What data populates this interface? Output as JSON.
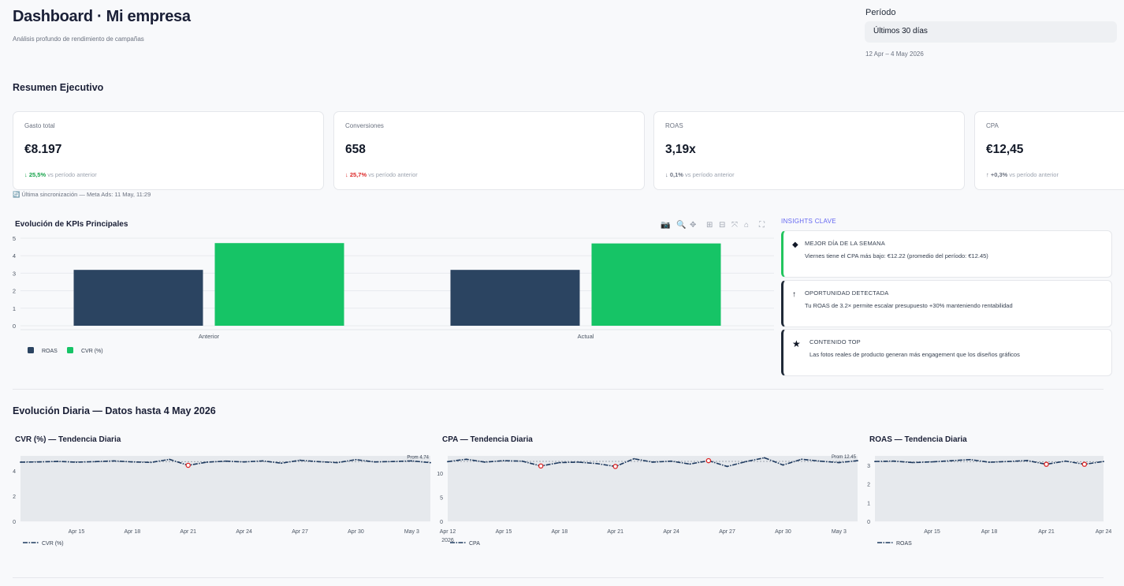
{
  "header": {
    "title": "Dashboard · Mi empresa",
    "subtitle": "Análisis profundo de rendimiento de campañas",
    "period_label": "Período",
    "period_value": "Últimos 30 días",
    "period_range": "12 Apr – 4 May 2026"
  },
  "summary": {
    "title": "Resumen Ejecutivo",
    "sync_note": "🔄 Última sincronización — Meta Ads: 11 May, 11:29",
    "cards": [
      {
        "label": "Gasto total",
        "value": "€8.197",
        "arrow": "↓",
        "delta": "25,5%",
        "delta_suffix": " vs período anterior",
        "status": "good",
        "color": "#16a34a"
      },
      {
        "label": "Conversiones",
        "value": "658",
        "arrow": "↓",
        "delta": "25,7%",
        "delta_suffix": " vs período anterior",
        "status": "bad",
        "color": "#dc2626"
      },
      {
        "label": "ROAS",
        "value": "3,19x",
        "arrow": "↓",
        "delta": "0,1%",
        "delta_suffix": " vs período anterior",
        "status": "neutral",
        "color": "#6b7280"
      },
      {
        "label": "CPA",
        "value": "€12,45",
        "arrow": "↑",
        "delta": "+0,3%",
        "delta_suffix": " vs período anterior",
        "status": "neutral",
        "color": "#6b7280"
      }
    ]
  },
  "kpi_chart": {
    "title": "Evolución de KPIs Principales",
    "toolbar": [
      "camera-icon",
      "zoom-icon",
      "pan-icon",
      "zoom-in-icon",
      "zoom-out-icon",
      "autoscale-icon",
      "reset-home-icon",
      "fullscreen-icon"
    ]
  },
  "insights": {
    "title": "INSIGHTS CLAVE",
    "items": [
      {
        "icon": "diamond-icon",
        "glyph": "◆",
        "head": "MEJOR DÍA DE LA SEMANA",
        "body": "Viernes tiene el CPA más bajo: €12.22 (promedio del período: €12.45)",
        "accent": "#22c55e"
      },
      {
        "icon": "arrow-up-icon",
        "glyph": "↑",
        "head": "OPORTUNIDAD DETECTADA",
        "body": "Tu ROAS de 3.2× permite escalar presupuesto +30% manteniendo rentabilidad",
        "accent": "#1f2937"
      },
      {
        "icon": "star-icon",
        "glyph": "★",
        "head": "CONTENIDO TOP",
        "body": "Las fotos reales de producto generan más engagement que los diseños gráficos",
        "accent": "#1f2937"
      }
    ]
  },
  "daily": {
    "title": "Evolución Diaria — Datos hasta 4 May 2026"
  },
  "chart_data": [
    {
      "type": "bar",
      "categories": [
        "Anterior",
        "Actual"
      ],
      "series": [
        {
          "name": "ROAS",
          "values": [
            3.19,
            3.19
          ],
          "color": "#2b4461"
        },
        {
          "name": "CVR (%)",
          "values": [
            4.72,
            4.7
          ],
          "color": "#16c466"
        }
      ],
      "ylim": [
        0,
        5
      ],
      "yticks": [
        0,
        1,
        2,
        3,
        4,
        5
      ],
      "grid": true,
      "legend": "bottom-left"
    },
    {
      "type": "line",
      "title": "CVR (%) — Tendencia Diaria",
      "series_name": "CVR (%)",
      "x": [
        "2026-04-12",
        "2026-04-13",
        "2026-04-14",
        "2026-04-15",
        "2026-04-16",
        "2026-04-17",
        "2026-04-18",
        "2026-04-19",
        "2026-04-20",
        "2026-04-21",
        "2026-04-22",
        "2026-04-23",
        "2026-04-24",
        "2026-04-25",
        "2026-04-26",
        "2026-04-27",
        "2026-04-28",
        "2026-04-29",
        "2026-04-30",
        "2026-05-01",
        "2026-05-02",
        "2026-05-03",
        "2026-05-04"
      ],
      "values": [
        4.7,
        4.72,
        4.76,
        4.7,
        4.74,
        4.8,
        4.72,
        4.68,
        4.92,
        4.45,
        4.7,
        4.78,
        4.72,
        4.8,
        4.62,
        4.85,
        4.74,
        4.66,
        4.9,
        4.72,
        4.75,
        4.8,
        4.66
      ],
      "anomalies": [
        9
      ],
      "average": 4.74,
      "average_label": "Prom 4.74",
      "ylim": [
        0,
        5.2
      ],
      "yticks": [
        0,
        2,
        4
      ],
      "xticks": [
        {
          "i": 3,
          "label": "Apr 15"
        },
        {
          "i": 6,
          "label": "Apr 18"
        },
        {
          "i": 9,
          "label": "Apr 21"
        },
        {
          "i": 12,
          "label": "Apr 24"
        },
        {
          "i": 15,
          "label": "Apr 27"
        },
        {
          "i": 18,
          "label": "Apr 30"
        },
        {
          "i": 21,
          "label": "May 3"
        }
      ]
    },
    {
      "type": "line",
      "title": "CPA — Tendencia Diaria",
      "series_name": "CPA",
      "x": [
        "2026-04-12",
        "2026-04-13",
        "2026-04-14",
        "2026-04-15",
        "2026-04-16",
        "2026-04-17",
        "2026-04-18",
        "2026-04-19",
        "2026-04-20",
        "2026-04-21",
        "2026-04-22",
        "2026-04-23",
        "2026-04-24",
        "2026-04-25",
        "2026-04-26",
        "2026-04-27",
        "2026-04-28",
        "2026-04-29",
        "2026-04-30",
        "2026-05-01",
        "2026-05-02",
        "2026-05-03",
        "2026-05-04"
      ],
      "values": [
        12.4,
        12.9,
        12.3,
        12.6,
        12.5,
        11.5,
        12.2,
        12.3,
        12.0,
        11.4,
        13.0,
        12.3,
        12.5,
        11.9,
        12.6,
        11.4,
        12.4,
        13.2,
        11.7,
        12.9,
        12.5,
        12.2,
        12.6
      ],
      "anomalies": [
        5,
        9,
        14
      ],
      "average": 12.45,
      "average_label": "Prom 12.45",
      "ylim": [
        0,
        13.6
      ],
      "yticks": [
        0,
        5,
        10
      ],
      "xticks": [
        {
          "i": 0,
          "label": "Apr 12",
          "sub": "2026"
        },
        {
          "i": 3,
          "label": "Apr 15"
        },
        {
          "i": 6,
          "label": "Apr 18"
        },
        {
          "i": 9,
          "label": "Apr 21"
        },
        {
          "i": 12,
          "label": "Apr 24"
        },
        {
          "i": 15,
          "label": "Apr 27"
        },
        {
          "i": 18,
          "label": "Apr 30"
        },
        {
          "i": 21,
          "label": "May 3"
        }
      ]
    },
    {
      "type": "line",
      "title": "ROAS — Tendencia Diaria",
      "series_name": "ROAS",
      "x": [
        "2026-04-12",
        "2026-04-13",
        "2026-04-14",
        "2026-04-15",
        "2026-04-16",
        "2026-04-17",
        "2026-04-18",
        "2026-04-19",
        "2026-04-20",
        "2026-04-21",
        "2026-04-22",
        "2026-04-23",
        "2026-04-24"
      ],
      "values": [
        3.2,
        3.22,
        3.14,
        3.18,
        3.24,
        3.3,
        3.16,
        3.2,
        3.25,
        3.05,
        3.22,
        3.05,
        3.2
      ],
      "anomalies": [
        9,
        11
      ],
      "average": 3.19,
      "ylim": [
        0,
        3.5
      ],
      "yticks": [
        0,
        1,
        2,
        3
      ],
      "xticks": [
        {
          "i": 3,
          "label": "Apr 15"
        },
        {
          "i": 6,
          "label": "Apr 18"
        },
        {
          "i": 9,
          "label": "Apr 21"
        },
        {
          "i": 12,
          "label": "Apr 24"
        }
      ]
    }
  ]
}
